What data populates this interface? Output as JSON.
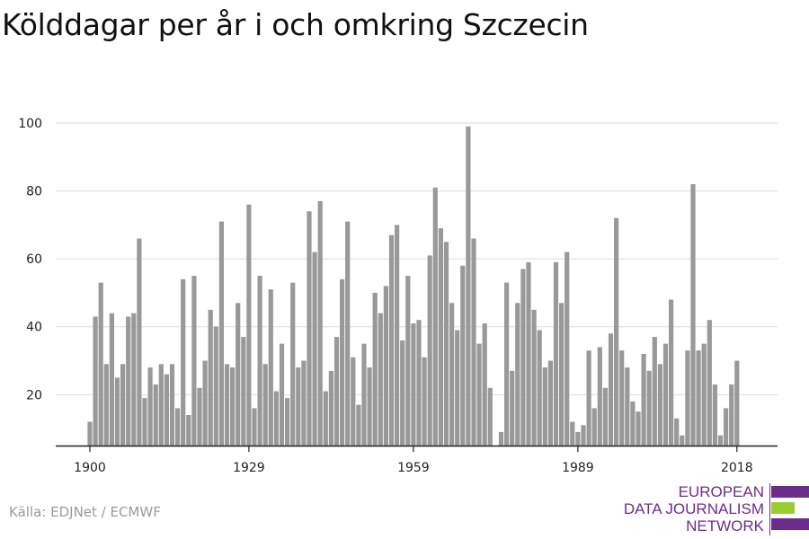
{
  "title": "Kölddagar per år i och omkring Szczecin",
  "source": "Källa: EDJNet / ECMWF",
  "logo": {
    "lines": [
      "EUROPEAN",
      "DATA JOURNALISM",
      "NETWORK"
    ],
    "colors": {
      "purple": "#6b2d8c",
      "green": "#9acd32"
    }
  },
  "chart_data": {
    "type": "bar",
    "x_start": 1900,
    "x_end": 2018,
    "x_ticks": [
      "1900",
      "1929",
      "1959",
      "1989",
      "2018"
    ],
    "y_ticks": [
      "20",
      "40",
      "60",
      "80",
      "100"
    ],
    "ylim": [
      5,
      100
    ],
    "grid": true,
    "bar_color": "#999999",
    "values": [
      12,
      43,
      53,
      29,
      44,
      25,
      29,
      43,
      44,
      66,
      19,
      28,
      23,
      29,
      26,
      29,
      16,
      54,
      14,
      55,
      22,
      30,
      45,
      40,
      71,
      29,
      28,
      47,
      37,
      76,
      16,
      55,
      29,
      51,
      21,
      35,
      19,
      53,
      28,
      30,
      74,
      62,
      77,
      21,
      27,
      37,
      54,
      71,
      31,
      17,
      35,
      28,
      50,
      44,
      52,
      67,
      70,
      36,
      55,
      41,
      42,
      31,
      61,
      81,
      69,
      65,
      47,
      39,
      58,
      99,
      66,
      35,
      41,
      22,
      5,
      9,
      53,
      27,
      47,
      57,
      59,
      45,
      39,
      28,
      30,
      59,
      47,
      62,
      12,
      9,
      11,
      33,
      16,
      34,
      22,
      38,
      72,
      33,
      28,
      18,
      15,
      32,
      27,
      37,
      29,
      35,
      48,
      13,
      8,
      33,
      82,
      33,
      35,
      42,
      23,
      8,
      16,
      23,
      30
    ]
  }
}
